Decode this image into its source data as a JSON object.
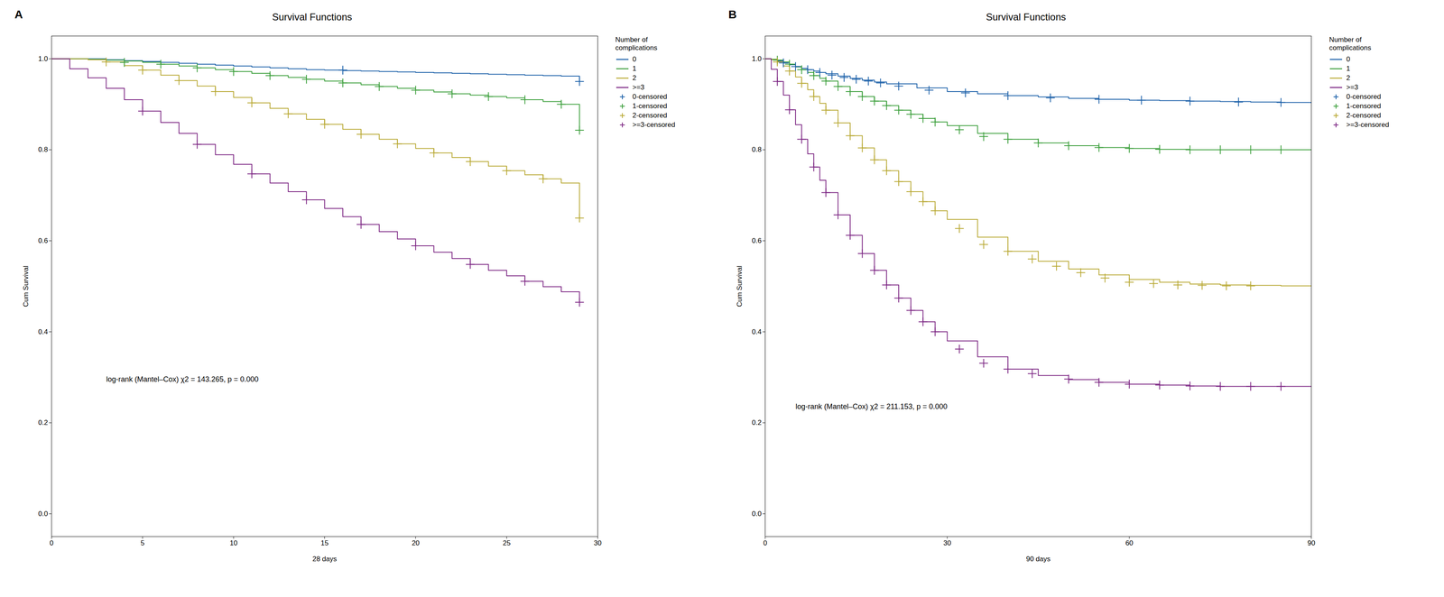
{
  "chart_data": [
    {
      "type": "step",
      "title": "Survival Functions",
      "panel_label": "A",
      "xlabel": "28 days",
      "ylabel": "Cum Survival",
      "xlim": [
        0,
        30
      ],
      "xticks": [
        0,
        5,
        10,
        15,
        20,
        25,
        30
      ],
      "ylim": [
        -0.05,
        1.05
      ],
      "yticks": [
        {
          "value": 0.0,
          "label": "0.0"
        },
        0.2,
        0.4,
        0.6,
        0.8,
        {
          "value": 1.0,
          "label": "1.0"
        }
      ],
      "legend": "upper right",
      "legend_title": "Number of\ncomplications",
      "annotations": [
        {
          "text": "log-rank (Mantel–Cox) χ2 = 143.265, p = 0.000",
          "x": 3.0,
          "y": 0.29
        }
      ],
      "series": [
        {
          "name": "0",
          "type": "step",
          "color": "#1a5fa8",
          "x": [
            0,
            2,
            3,
            4,
            5,
            6,
            7,
            8,
            9,
            10,
            11,
            12,
            13,
            14,
            15,
            16,
            17,
            18,
            19,
            20,
            21,
            22,
            23,
            24,
            25,
            26,
            27,
            28,
            29
          ],
          "values": [
            1.0,
            1.0,
            0.998,
            0.996,
            0.994,
            0.992,
            0.99,
            0.988,
            0.986,
            0.984,
            0.982,
            0.98,
            0.978,
            0.976,
            0.975,
            0.974,
            0.973,
            0.972,
            0.971,
            0.97,
            0.969,
            0.968,
            0.967,
            0.966,
            0.965,
            0.964,
            0.963,
            0.962,
            0.95
          ]
        },
        {
          "name": "1",
          "type": "step",
          "color": "#3a9e3a",
          "x": [
            0,
            1,
            2,
            3,
            4,
            5,
            6,
            7,
            8,
            9,
            10,
            11,
            12,
            13,
            14,
            15,
            16,
            17,
            18,
            19,
            20,
            21,
            22,
            23,
            24,
            25,
            26,
            27,
            28,
            29
          ],
          "values": [
            1.0,
            1.0,
            0.999,
            0.997,
            0.995,
            0.992,
            0.988,
            0.984,
            0.98,
            0.976,
            0.972,
            0.968,
            0.963,
            0.959,
            0.955,
            0.951,
            0.947,
            0.943,
            0.939,
            0.935,
            0.931,
            0.927,
            0.923,
            0.92,
            0.917,
            0.914,
            0.91,
            0.906,
            0.9,
            0.843
          ]
        },
        {
          "name": "2",
          "type": "step",
          "color": "#b8a832",
          "x": [
            0,
            1,
            2,
            3,
            4,
            5,
            6,
            7,
            8,
            9,
            10,
            11,
            12,
            13,
            14,
            15,
            16,
            17,
            18,
            19,
            20,
            21,
            22,
            23,
            24,
            25,
            26,
            27,
            28,
            29
          ],
          "values": [
            1.0,
            1.0,
            0.998,
            0.993,
            0.985,
            0.975,
            0.964,
            0.952,
            0.94,
            0.928,
            0.915,
            0.903,
            0.891,
            0.879,
            0.867,
            0.856,
            0.845,
            0.834,
            0.823,
            0.813,
            0.803,
            0.793,
            0.783,
            0.774,
            0.764,
            0.754,
            0.745,
            0.736,
            0.727,
            0.65
          ]
        },
        {
          "name": ">=3",
          "type": "step",
          "color": "#7b2482",
          "x": [
            0,
            1,
            2,
            3,
            4,
            5,
            6,
            7,
            8,
            9,
            10,
            11,
            12,
            13,
            14,
            15,
            16,
            17,
            18,
            19,
            20,
            21,
            22,
            23,
            24,
            25,
            26,
            27,
            28,
            29
          ],
          "values": [
            1.0,
            0.978,
            0.958,
            0.935,
            0.91,
            0.885,
            0.86,
            0.836,
            0.812,
            0.789,
            0.768,
            0.747,
            0.727,
            0.708,
            0.69,
            0.671,
            0.653,
            0.636,
            0.62,
            0.604,
            0.589,
            0.575,
            0.561,
            0.548,
            0.535,
            0.523,
            0.511,
            0.499,
            0.488,
            0.465
          ]
        },
        {
          "name": "0-censored",
          "type": "scatter",
          "marker": "+",
          "color": "#1a5fa8",
          "x": [
            16,
            29
          ],
          "values": [
            0.975,
            0.95
          ]
        },
        {
          "name": "1-censored",
          "type": "scatter",
          "marker": "+",
          "color": "#3a9e3a",
          "x": [
            4,
            6,
            8,
            10,
            12,
            14,
            16,
            18,
            20,
            22,
            24,
            26,
            28,
            29
          ],
          "values": [
            0.992,
            0.988,
            0.98,
            0.972,
            0.963,
            0.955,
            0.947,
            0.939,
            0.931,
            0.923,
            0.917,
            0.91,
            0.9,
            0.843
          ]
        },
        {
          "name": "2-censored",
          "type": "scatter",
          "marker": "+",
          "color": "#b8a832",
          "x": [
            3,
            5,
            7,
            9,
            11,
            13,
            15,
            17,
            19,
            21,
            23,
            25,
            27,
            29
          ],
          "values": [
            0.993,
            0.975,
            0.952,
            0.928,
            0.903,
            0.879,
            0.856,
            0.834,
            0.813,
            0.793,
            0.774,
            0.754,
            0.736,
            0.65
          ]
        },
        {
          "name": ">=3-censored",
          "type": "scatter",
          "marker": "+",
          "color": "#7b2482",
          "x": [
            5,
            8,
            11,
            14,
            17,
            20,
            23,
            26,
            29
          ],
          "values": [
            0.885,
            0.812,
            0.747,
            0.69,
            0.636,
            0.589,
            0.548,
            0.511,
            0.465
          ]
        }
      ]
    },
    {
      "type": "step",
      "title": "Survival Functions",
      "panel_label": "B",
      "xlabel": "90 days",
      "ylabel": "Cum Survival",
      "xlim": [
        0,
        90
      ],
      "xticks": [
        0,
        30,
        60,
        90
      ],
      "ylim": [
        -0.05,
        1.05
      ],
      "yticks": [
        {
          "value": 0.0,
          "label": "0.0"
        },
        0.2,
        0.4,
        0.6,
        0.8,
        {
          "value": 1.0,
          "label": "1.0"
        }
      ],
      "legend": "upper right",
      "legend_title": "Number of\ncomplications",
      "annotations": [
        {
          "text": "log-rank (Mantel–Cox) χ2 = 211.153, p = 0.000",
          "x": 5.0,
          "y": 0.23
        }
      ],
      "series": [
        {
          "name": "0",
          "type": "step",
          "color": "#1a5fa8",
          "x": [
            0,
            1,
            2,
            3,
            4,
            5,
            6,
            7,
            8,
            9,
            10,
            12,
            14,
            16,
            18,
            20,
            25,
            30,
            35,
            40,
            45,
            50,
            55,
            60,
            65,
            70,
            75,
            80,
            85,
            90
          ],
          "values": [
            1.0,
            0.998,
            0.995,
            0.991,
            0.987,
            0.983,
            0.979,
            0.976,
            0.973,
            0.97,
            0.967,
            0.962,
            0.957,
            0.953,
            0.949,
            0.945,
            0.936,
            0.928,
            0.923,
            0.919,
            0.916,
            0.913,
            0.911,
            0.909,
            0.908,
            0.907,
            0.906,
            0.905,
            0.904,
            0.903
          ]
        },
        {
          "name": "1",
          "type": "step",
          "color": "#3a9e3a",
          "x": [
            0,
            1,
            2,
            3,
            4,
            5,
            6,
            7,
            8,
            9,
            10,
            12,
            14,
            16,
            18,
            20,
            22,
            24,
            26,
            28,
            30,
            35,
            40,
            45,
            50,
            55,
            60,
            65,
            70,
            75,
            80,
            85,
            90
          ],
          "values": [
            1.0,
            0.999,
            0.997,
            0.993,
            0.988,
            0.982,
            0.976,
            0.97,
            0.963,
            0.957,
            0.951,
            0.939,
            0.928,
            0.917,
            0.907,
            0.897,
            0.887,
            0.878,
            0.869,
            0.861,
            0.853,
            0.836,
            0.823,
            0.815,
            0.809,
            0.805,
            0.803,
            0.801,
            0.8,
            0.8,
            0.8,
            0.8,
            0.8
          ]
        },
        {
          "name": "2",
          "type": "step",
          "color": "#b8a832",
          "x": [
            0,
            1,
            2,
            3,
            4,
            5,
            6,
            7,
            8,
            9,
            10,
            12,
            14,
            16,
            18,
            20,
            22,
            24,
            26,
            28,
            30,
            35,
            40,
            45,
            50,
            55,
            60,
            65,
            70,
            75,
            80,
            85,
            90
          ],
          "values": [
            1.0,
            0.998,
            0.993,
            0.984,
            0.973,
            0.96,
            0.946,
            0.932,
            0.917,
            0.902,
            0.887,
            0.859,
            0.831,
            0.804,
            0.778,
            0.754,
            0.73,
            0.708,
            0.686,
            0.666,
            0.647,
            0.608,
            0.577,
            0.555,
            0.538,
            0.525,
            0.515,
            0.509,
            0.505,
            0.503,
            0.502,
            0.501,
            0.501
          ]
        },
        {
          "name": ">=3",
          "type": "step",
          "color": "#7b2482",
          "x": [
            0,
            1,
            2,
            3,
            4,
            5,
            6,
            7,
            8,
            9,
            10,
            12,
            14,
            16,
            18,
            20,
            22,
            24,
            26,
            28,
            30,
            35,
            40,
            45,
            50,
            55,
            60,
            65,
            70,
            75,
            80,
            85,
            90
          ],
          "values": [
            1.0,
            0.977,
            0.95,
            0.92,
            0.888,
            0.855,
            0.823,
            0.791,
            0.762,
            0.733,
            0.706,
            0.657,
            0.612,
            0.572,
            0.535,
            0.503,
            0.474,
            0.447,
            0.422,
            0.4,
            0.38,
            0.345,
            0.318,
            0.304,
            0.295,
            0.289,
            0.285,
            0.283,
            0.281,
            0.28,
            0.28,
            0.28,
            0.28
          ]
        },
        {
          "name": "0-censored",
          "type": "scatter",
          "marker": "+",
          "color": "#1a5fa8",
          "x": [
            3,
            5,
            7,
            9,
            11,
            13,
            15,
            17,
            19,
            22,
            27,
            33,
            40,
            47,
            55,
            62,
            70,
            78,
            85
          ],
          "values": [
            0.991,
            0.983,
            0.976,
            0.97,
            0.964,
            0.959,
            0.955,
            0.951,
            0.947,
            0.94,
            0.931,
            0.925,
            0.919,
            0.914,
            0.911,
            0.909,
            0.907,
            0.905,
            0.904
          ]
        },
        {
          "name": "1-censored",
          "type": "scatter",
          "marker": "+",
          "color": "#3a9e3a",
          "x": [
            2,
            4,
            6,
            8,
            10,
            12,
            14,
            16,
            18,
            20,
            22,
            24,
            26,
            28,
            32,
            36,
            40,
            45,
            50,
            55,
            60,
            65,
            70,
            75,
            80,
            85
          ],
          "values": [
            0.997,
            0.988,
            0.976,
            0.963,
            0.951,
            0.939,
            0.928,
            0.917,
            0.907,
            0.897,
            0.887,
            0.878,
            0.869,
            0.861,
            0.844,
            0.829,
            0.823,
            0.815,
            0.809,
            0.805,
            0.803,
            0.801,
            0.8,
            0.8,
            0.8,
            0.8
          ]
        },
        {
          "name": "2-censored",
          "type": "scatter",
          "marker": "+",
          "color": "#b8a832",
          "x": [
            2,
            4,
            6,
            8,
            10,
            12,
            14,
            16,
            18,
            20,
            22,
            24,
            26,
            28,
            32,
            36,
            40,
            44,
            48,
            52,
            56,
            60,
            64,
            68,
            72,
            76,
            80
          ],
          "values": [
            0.993,
            0.973,
            0.946,
            0.917,
            0.887,
            0.859,
            0.831,
            0.804,
            0.778,
            0.754,
            0.73,
            0.708,
            0.686,
            0.666,
            0.627,
            0.592,
            0.577,
            0.56,
            0.544,
            0.53,
            0.518,
            0.509,
            0.506,
            0.503,
            0.502,
            0.501,
            0.501
          ]
        },
        {
          "name": ">=3-censored",
          "type": "scatter",
          "marker": "+",
          "color": "#7b2482",
          "x": [
            2,
            4,
            6,
            8,
            10,
            12,
            14,
            16,
            18,
            20,
            22,
            24,
            26,
            28,
            32,
            36,
            40,
            44,
            50,
            55,
            60,
            65,
            70,
            75,
            80,
            85
          ],
          "values": [
            0.95,
            0.888,
            0.823,
            0.762,
            0.706,
            0.657,
            0.612,
            0.572,
            0.535,
            0.503,
            0.474,
            0.447,
            0.422,
            0.4,
            0.362,
            0.331,
            0.318,
            0.308,
            0.296,
            0.289,
            0.285,
            0.283,
            0.281,
            0.28,
            0.28,
            0.28
          ]
        }
      ]
    }
  ]
}
